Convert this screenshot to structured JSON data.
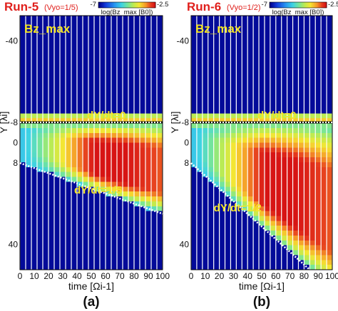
{
  "chart_data": [
    {
      "type": "heatmap",
      "panel_label": "(a)",
      "run_title": "Run-5",
      "run_param": "(Vyo=1/5)",
      "inner_label": "Bz_max",
      "xlabel": "time [Ωi-1]",
      "ylabel": "Y [λi]",
      "xlim": [
        0,
        100
      ],
      "ylim": [
        -50,
        50
      ],
      "y_inverted": true,
      "x_ticks": [
        "0",
        "10",
        "20",
        "30",
        "40",
        "50",
        "60",
        "70",
        "80",
        "90",
        "100"
      ],
      "y_ticks": [
        {
          "value": -40,
          "label": "-40"
        },
        {
          "value": -8,
          "label": "-8"
        },
        {
          "value": 0,
          "label": "0"
        },
        {
          "value": 8,
          "label": "8"
        },
        {
          "value": 40,
          "label": "40"
        }
      ],
      "colorbar": {
        "label": "log(Bz_max [B0])",
        "min": -7,
        "max": -2.5,
        "min_label": "-7",
        "max_label": "-2.5"
      },
      "slope": 0.2,
      "annotations": [
        {
          "text": "dY/dt=0",
          "line": "Y=-8"
        },
        {
          "text": "dY/dt=1/5",
          "line": "Y=8+t/5"
        }
      ]
    },
    {
      "type": "heatmap",
      "panel_label": "(b)",
      "run_title": "Run-6",
      "run_param": "(Vyo=1/2)",
      "inner_label": "Bz_max",
      "xlabel": "time [Ωi-1]",
      "ylabel": "Y [λi]",
      "xlim": [
        0,
        100
      ],
      "ylim": [
        -50,
        50
      ],
      "y_inverted": true,
      "x_ticks": [
        "0",
        "10",
        "20",
        "30",
        "40",
        "50",
        "60",
        "70",
        "80",
        "90",
        "100"
      ],
      "y_ticks": [
        {
          "value": -40,
          "label": "-40"
        },
        {
          "value": -8,
          "label": "-8"
        },
        {
          "value": 0,
          "label": "0"
        },
        {
          "value": 8,
          "label": "8"
        },
        {
          "value": 40,
          "label": "40"
        }
      ],
      "colorbar": {
        "label": "log(Bz_max [B0])",
        "min": -7,
        "max": -2.5,
        "min_label": "-7",
        "max_label": "-2.5"
      },
      "slope": 0.5,
      "annotations": [
        {
          "text": "dY/dt=0",
          "line": "Y=-8"
        },
        {
          "text": "dY/dt=1/2",
          "line": "Y=8+t/2"
        }
      ]
    }
  ]
}
